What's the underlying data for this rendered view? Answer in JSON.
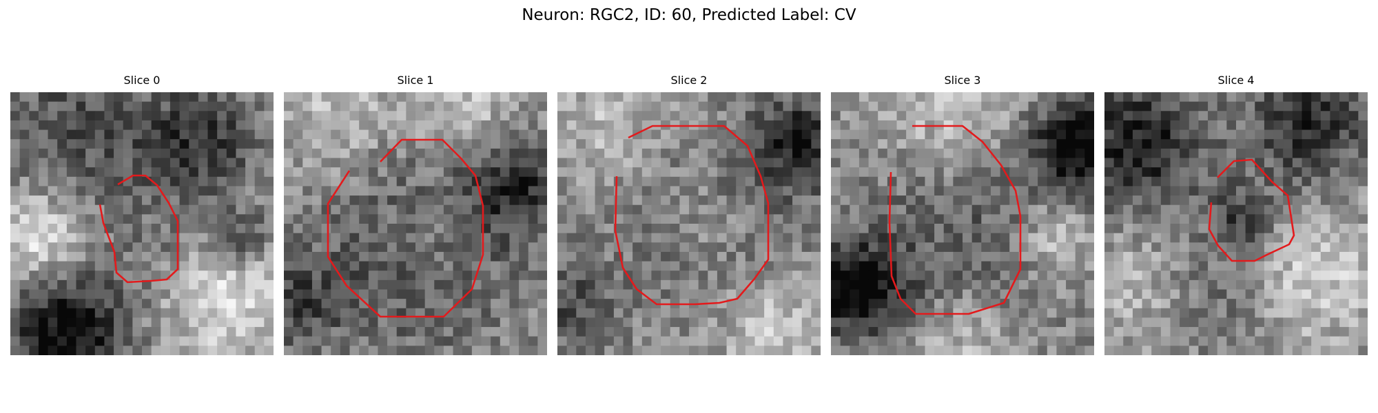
{
  "figure": {
    "suptitle": "Neuron: RGC2, ID: 60, Predicted Label: CV",
    "contour_color": "#e31a1c",
    "colormap": "gray",
    "panels": [
      {
        "title": "Slice 0"
      },
      {
        "title": "Slice 1"
      },
      {
        "title": "Slice 2"
      },
      {
        "title": "Slice 3"
      },
      {
        "title": "Slice 4"
      }
    ]
  }
}
